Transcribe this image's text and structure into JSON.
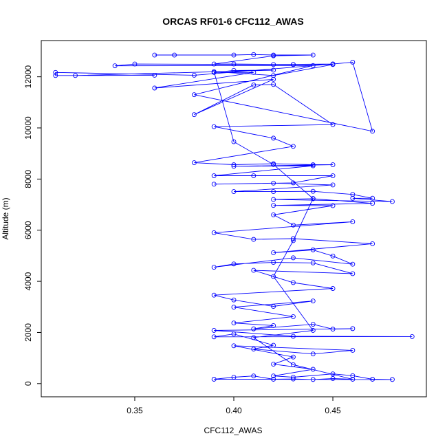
{
  "chart_data": {
    "type": "line",
    "title": "ORCAS RF01-6 CFC112_AWAS",
    "xlabel": "CFC112_AWAS",
    "ylabel": "Altitude (m)",
    "xlim": [
      0.31,
      0.49
    ],
    "ylim": [
      0,
      12900
    ],
    "x_ticks": [
      0.35,
      0.4,
      0.45
    ],
    "y_ticks": [
      0,
      2000,
      4000,
      6000,
      8000,
      10000,
      12000
    ],
    "grid": false,
    "series_color": "#0000ff",
    "markers": "open-circle",
    "series": [
      {
        "points": [
          [
            0.36,
            12850
          ],
          [
            0.37,
            12850
          ],
          [
            0.4,
            12850
          ],
          [
            0.41,
            12870
          ],
          [
            0.42,
            12850
          ],
          [
            0.44,
            12850
          ],
          [
            0.42,
            12820
          ],
          [
            0.39,
            12500
          ],
          [
            0.4,
            12500
          ],
          [
            0.43,
            12480
          ],
          [
            0.45,
            12500
          ],
          [
            0.46,
            12570
          ],
          [
            0.47,
            9870
          ],
          [
            0.38,
            11300
          ],
          [
            0.44,
            12440
          ],
          [
            0.34,
            12430
          ],
          [
            0.35,
            12500
          ],
          [
            0.42,
            12480
          ],
          [
            0.45,
            12500
          ],
          [
            0.38,
            12060
          ],
          [
            0.31,
            12170
          ],
          [
            0.31,
            12050
          ],
          [
            0.36,
            12060
          ],
          [
            0.32,
            12050
          ],
          [
            0.42,
            12260
          ],
          [
            0.4,
            12250
          ],
          [
            0.39,
            12170
          ],
          [
            0.41,
            12170
          ],
          [
            0.36,
            11560
          ],
          [
            0.42,
            11900
          ],
          [
            0.38,
            10520
          ],
          [
            0.41,
            11680
          ],
          [
            0.42,
            11700
          ],
          [
            0.45,
            10130
          ],
          [
            0.39,
            10050
          ],
          [
            0.42,
            9600
          ],
          [
            0.43,
            9280
          ],
          [
            0.38,
            8640
          ],
          [
            0.4,
            8560
          ],
          [
            0.42,
            8600
          ],
          [
            0.44,
            8560
          ],
          [
            0.45,
            8560
          ],
          [
            0.4,
            8500
          ],
          [
            0.44,
            8520
          ],
          [
            0.39,
            8130
          ],
          [
            0.41,
            8130
          ],
          [
            0.45,
            8130
          ],
          [
            0.43,
            7850
          ],
          [
            0.39,
            7800
          ],
          [
            0.42,
            7840
          ],
          [
            0.45,
            7770
          ],
          [
            0.4,
            7510
          ],
          [
            0.42,
            7510
          ],
          [
            0.44,
            7520
          ],
          [
            0.46,
            7400
          ],
          [
            0.47,
            7250
          ],
          [
            0.46,
            7250
          ],
          [
            0.48,
            7120
          ],
          [
            0.42,
            7200
          ],
          [
            0.44,
            7230
          ],
          [
            0.47,
            7050
          ],
          [
            0.42,
            6970
          ],
          [
            0.45,
            6960
          ],
          [
            0.42,
            6600
          ],
          [
            0.43,
            6200
          ],
          [
            0.46,
            6330
          ],
          [
            0.39,
            5900
          ],
          [
            0.41,
            5640
          ],
          [
            0.43,
            5670
          ],
          [
            0.47,
            5470
          ],
          [
            0.42,
            5120
          ],
          [
            0.44,
            5230
          ],
          [
            0.45,
            4990
          ],
          [
            0.46,
            4670
          ],
          [
            0.43,
            4920
          ],
          [
            0.39,
            4550
          ],
          [
            0.4,
            4680
          ],
          [
            0.42,
            4740
          ],
          [
            0.44,
            4720
          ],
          [
            0.46,
            4300
          ],
          [
            0.41,
            4430
          ],
          [
            0.43,
            3950
          ],
          [
            0.45,
            3720
          ],
          [
            0.39,
            3460
          ],
          [
            0.4,
            3270
          ],
          [
            0.42,
            3020
          ],
          [
            0.44,
            3230
          ],
          [
            0.4,
            2990
          ],
          [
            0.43,
            2620
          ],
          [
            0.4,
            2370
          ],
          [
            0.42,
            2270
          ],
          [
            0.41,
            2140
          ],
          [
            0.44,
            2320
          ],
          [
            0.45,
            2130
          ],
          [
            0.46,
            2150
          ],
          [
            0.39,
            2080
          ],
          [
            0.43,
            1850
          ],
          [
            0.49,
            1840
          ],
          [
            0.39,
            1830
          ],
          [
            0.4,
            1940
          ],
          [
            0.42,
            1500
          ],
          [
            0.41,
            1350
          ],
          [
            0.44,
            1160
          ],
          [
            0.46,
            1300
          ],
          [
            0.4,
            1480
          ],
          [
            0.43,
            1040
          ],
          [
            0.42,
            760
          ],
          [
            0.44,
            560
          ],
          [
            0.42,
            300
          ],
          [
            0.43,
            250
          ],
          [
            0.45,
            380
          ],
          [
            0.46,
            310
          ],
          [
            0.47,
            170
          ],
          [
            0.48,
            160
          ],
          [
            0.39,
            170
          ],
          [
            0.4,
            250
          ],
          [
            0.41,
            300
          ],
          [
            0.42,
            170
          ],
          [
            0.43,
            180
          ],
          [
            0.44,
            160
          ],
          [
            0.45,
            200
          ],
          [
            0.46,
            170
          ],
          [
            0.43,
            740
          ],
          [
            0.41,
            1800
          ],
          [
            0.44,
            2080
          ],
          [
            0.42,
            4190
          ],
          [
            0.43,
            5590
          ],
          [
            0.44,
            7240
          ],
          [
            0.42,
            8570
          ],
          [
            0.4,
            9460
          ],
          [
            0.39,
            12200
          ],
          [
            0.42,
            12050
          ],
          [
            0.45,
            12480
          ],
          [
            0.43,
            12480
          ]
        ]
      }
    ]
  }
}
